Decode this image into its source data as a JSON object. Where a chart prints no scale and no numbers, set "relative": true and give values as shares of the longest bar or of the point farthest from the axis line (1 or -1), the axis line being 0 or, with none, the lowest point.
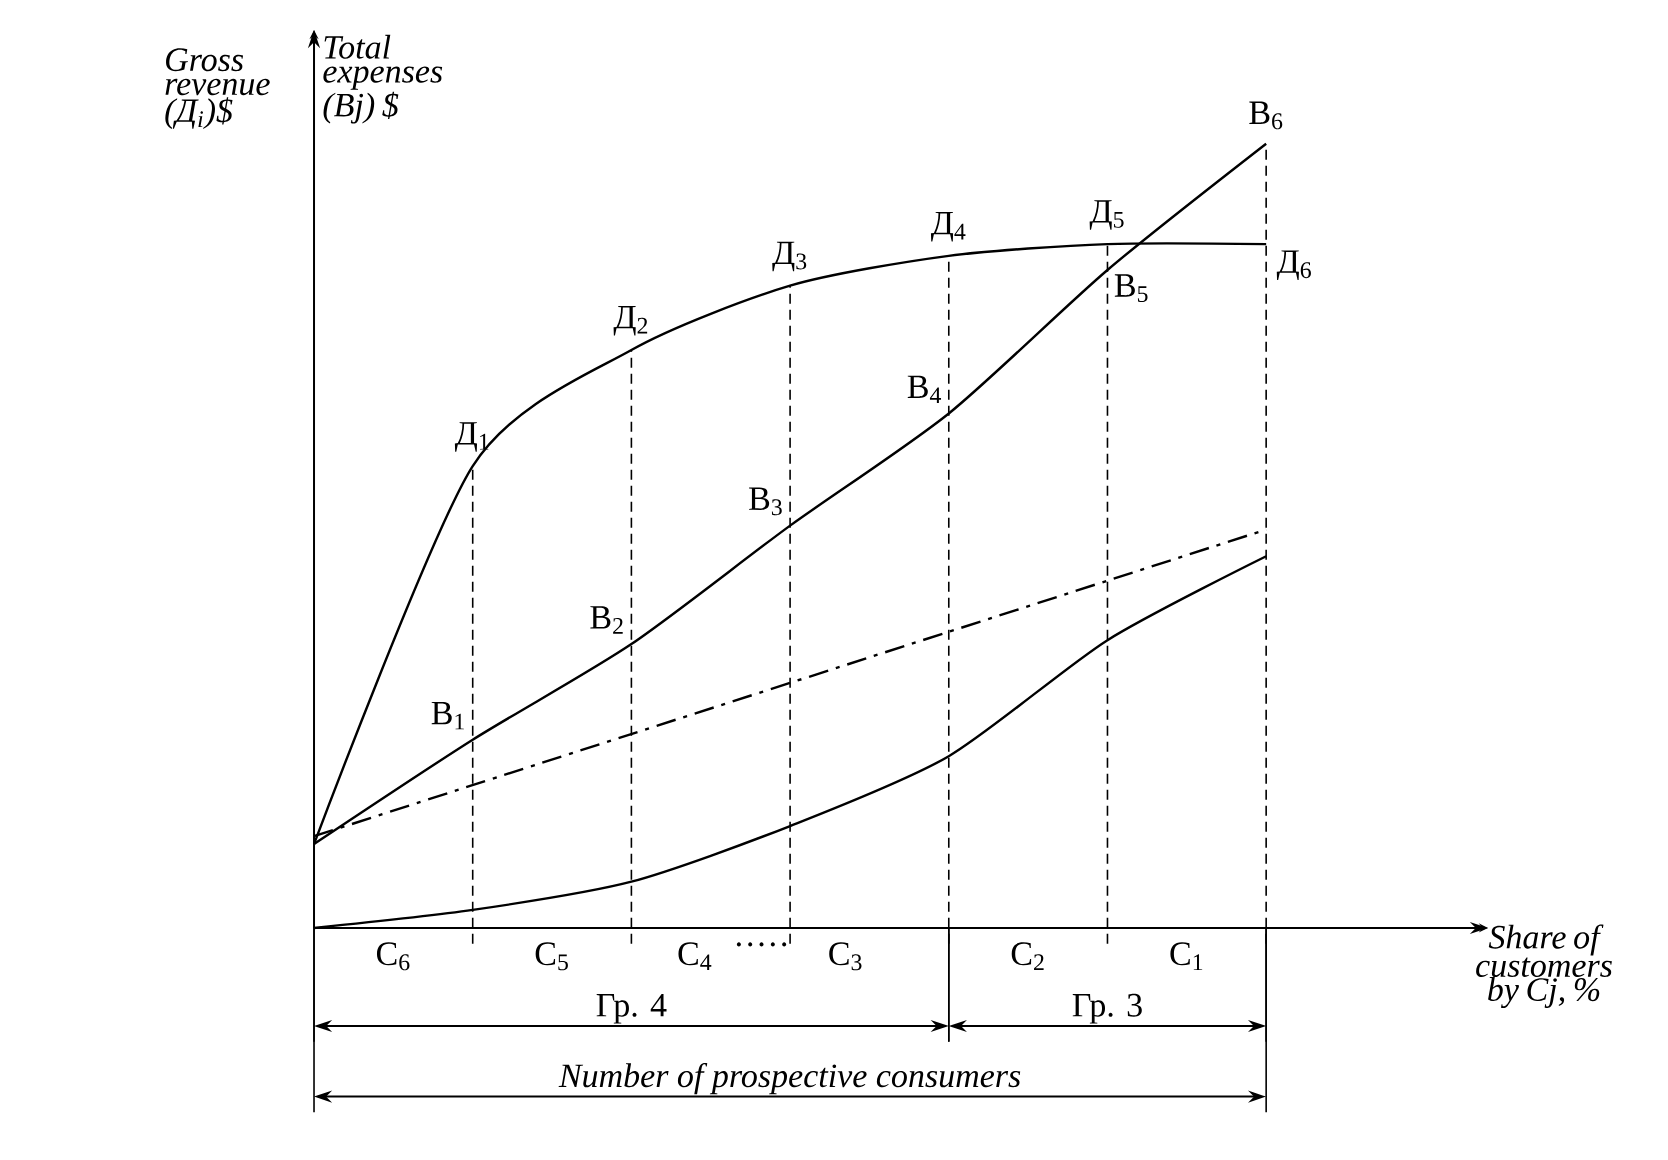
{
  "chart_data": {
    "type": "line",
    "relative": true,
    "grid": "x",
    "xlabel": "Share of customers by Cj, %",
    "categories": [
      null,
      null,
      null,
      null,
      null,
      null,
      null
    ],
    "series": [
      {
        "color": "#000000",
        "line_style": "solid",
        "values": [
          0.107,
          0.589,
          0.737,
          0.819,
          0.857,
          0.872,
          0.872
        ]
      },
      {
        "color": "#000000",
        "line_style": "solid",
        "values": [
          0.107,
          0.24,
          0.362,
          0.513,
          0.656,
          0.839,
          1.0
        ]
      },
      {
        "color": "#000000",
        "line_style": "dashdot",
        "values": [
          0.117,
          null,
          null,
          null,
          null,
          null,
          0.508
        ]
      },
      {
        "color": "#000000",
        "line_style": "solid",
        "values": [
          0,
          0.023,
          0.059,
          0.13,
          0.219,
          0.367,
          0.474
        ]
      }
    ],
    "annotations": [
      "Д$_{1}$",
      "Д$_{2}$",
      "Д$_{3}$",
      "Д$_{4}$",
      "Д$_{5}$",
      "Д$_{6}$",
      "B$_{1}$",
      "B$_{2}$",
      "B$_{3}$",
      "B$_{4}$",
      "B$_{5}$",
      "B$_{6}$",
      "C$_{6}$",
      "C$_{5}$",
      "C$_{4}$",
      "·····",
      "C$_{3}$",
      "C$_{2}$",
      "C$_{1}$",
      "Total expenses (Bj) $",
      "Gross revenue (Д$_{i}$)$",
      "Гр. 4",
      "Гр. 3",
      "Number of prospective consumers"
    ]
  }
}
